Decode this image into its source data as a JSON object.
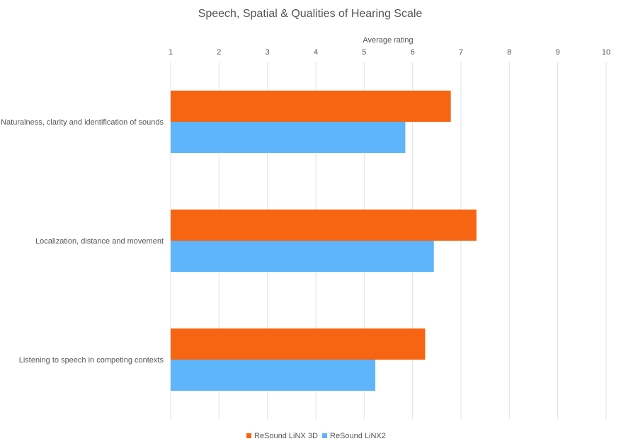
{
  "chart_data": {
    "type": "bar",
    "orientation": "horizontal",
    "title": "Speech, Spatial & Qualities of Hearing Scale",
    "xlabel": "Average rating",
    "ylabel": "",
    "xlim": [
      1,
      10
    ],
    "xticks": [
      "1",
      "2",
      "3",
      "4",
      "5",
      "6",
      "7",
      "8",
      "9",
      "10"
    ],
    "x_axis_position": "top",
    "grid": true,
    "legend_position": "bottom",
    "categories": [
      "Naturalness, clarity and identification of sounds",
      "Localization, distance and movement",
      "Listening to speech in competing contexts"
    ],
    "series": [
      {
        "name": "ReSound LiNX 3D",
        "color": "#f76412",
        "values": [
          6.79,
          7.32,
          6.26
        ]
      },
      {
        "name": "ReSound LiNX2",
        "color": "#5eb5fc",
        "values": [
          5.85,
          6.44,
          5.23
        ]
      }
    ]
  }
}
